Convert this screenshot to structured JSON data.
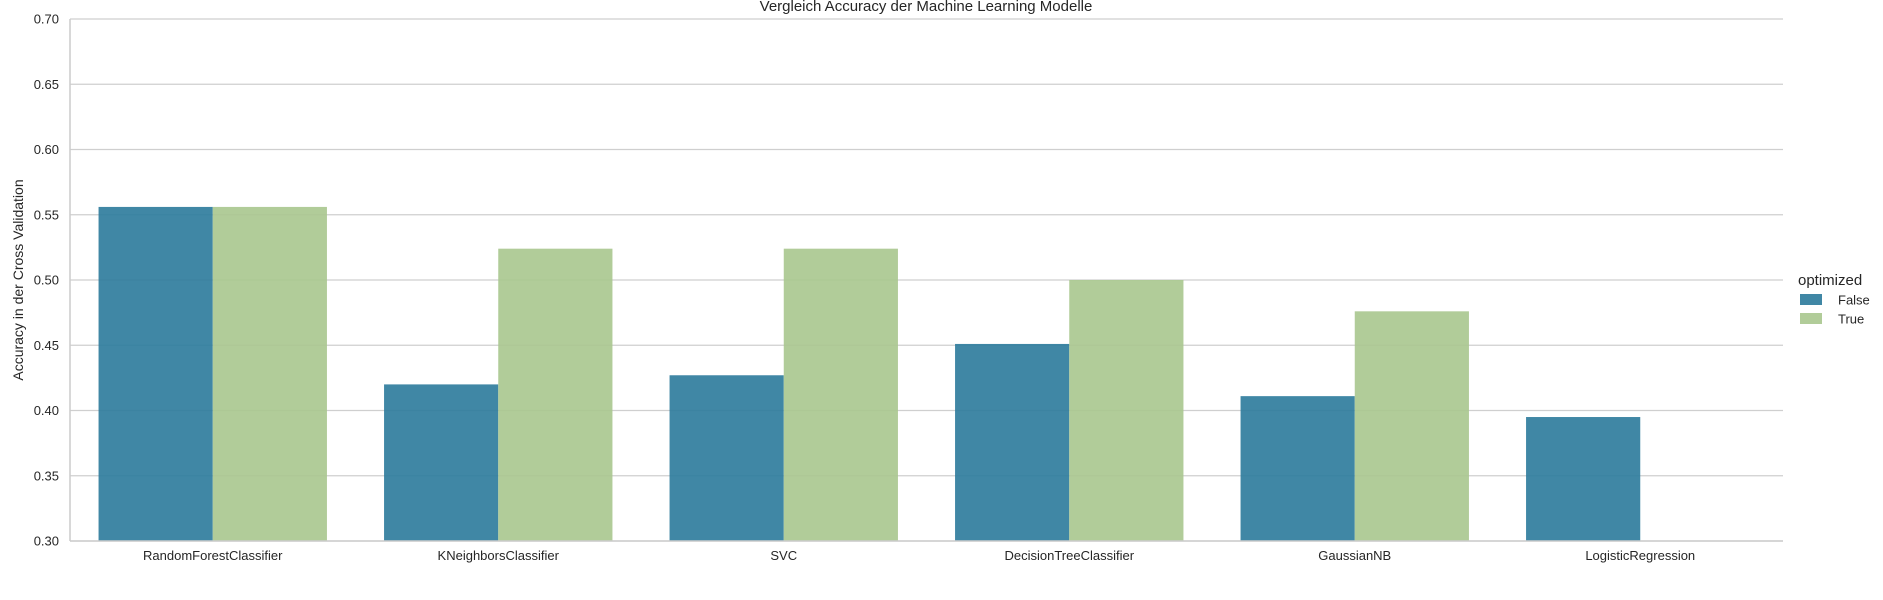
{
  "chart_data": {
    "type": "bar",
    "title": "Vergleich Accuracy der Machine Learning Modelle",
    "xlabel": "",
    "ylabel": "Accuracy in der Cross Validation",
    "ylim": [
      0.3,
      0.7
    ],
    "yticks": [
      "0.30",
      "0.35",
      "0.40",
      "0.45",
      "0.50",
      "0.55",
      "0.60",
      "0.65",
      "0.70"
    ],
    "grid": "horizontal",
    "legend_position": "right",
    "legend_title": "optimized",
    "categories": [
      "RandomForestClassifier",
      "KNeighborsClassifier",
      "SVC",
      "DecisionTreeClassifier",
      "GaussianNB",
      "LogisticRegression"
    ],
    "series": [
      {
        "name": "False",
        "color": "#2b7a9b",
        "values": [
          0.556,
          0.42,
          0.427,
          0.451,
          0.411,
          0.395
        ]
      },
      {
        "name": "True",
        "color": "#a8c78e",
        "values": [
          0.556,
          0.524,
          0.524,
          0.5,
          0.476,
          null
        ]
      }
    ]
  }
}
